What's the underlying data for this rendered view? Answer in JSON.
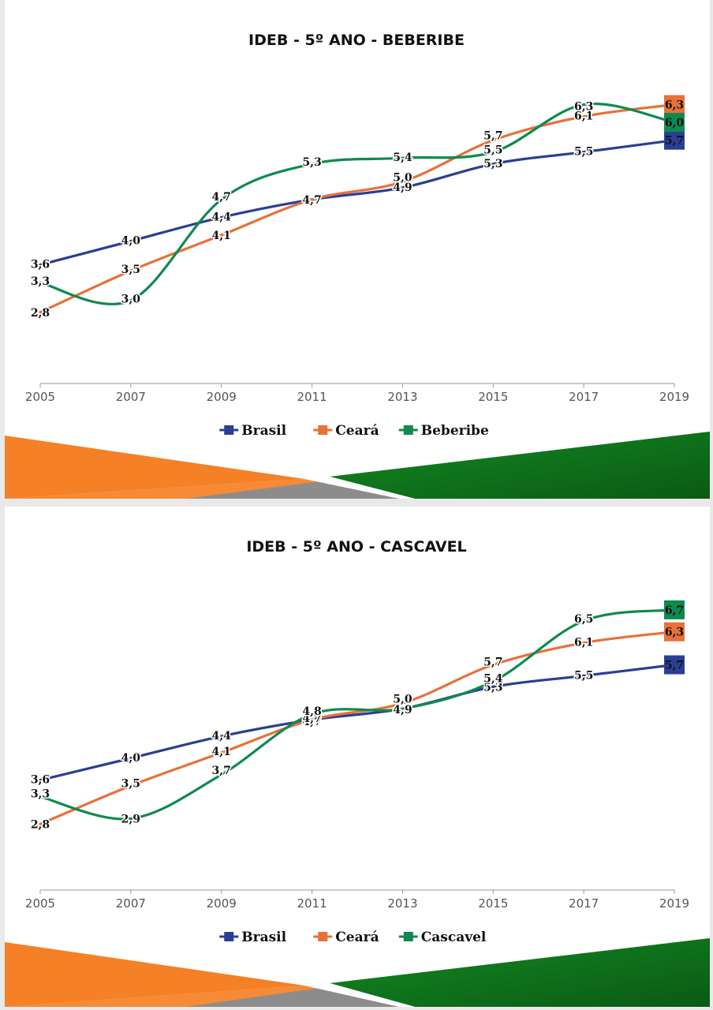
{
  "colors": {
    "brasil": "#2a3f93",
    "ceara": "#e7713a",
    "municipio": "#0f8a4f",
    "axis": "#999999",
    "banner_orange": "#f58025",
    "banner_green": "#138a22",
    "banner_gray": "#8c8c8c"
  },
  "chart_data": [
    {
      "type": "line",
      "title": "IDEB -  5º ANO - BEBERIBE",
      "x": [
        "2005",
        "2007",
        "2009",
        "2011",
        "2013",
        "2015",
        "2017",
        "2019"
      ],
      "ylim": [
        1.6,
        6.6
      ],
      "series": [
        {
          "name": "Brasil",
          "color_key": "brasil",
          "values": [
            3.6,
            4.0,
            4.4,
            4.7,
            4.9,
            5.3,
            5.5,
            5.7
          ],
          "labels": [
            "3,6",
            "4,0",
            "4,4",
            "4,7",
            "4,9",
            "5,3",
            "5,5",
            "5,7"
          ]
        },
        {
          "name": "Ceará",
          "color_key": "ceara",
          "values": [
            2.8,
            3.5,
            4.1,
            4.7,
            5.0,
            5.7,
            6.1,
            6.3
          ],
          "labels": [
            "2,8",
            "3,5",
            "4,1",
            "4,7",
            "5,0",
            "5,7",
            "6,1",
            "6,3"
          ]
        },
        {
          "name": "Beberibe",
          "color_key": "municipio",
          "values": [
            3.3,
            3.0,
            4.7,
            5.3,
            5.4,
            5.5,
            6.3,
            6.0
          ],
          "labels": [
            "3,3",
            "3,0",
            "4,7",
            "5,3",
            "5,4",
            "5,5",
            "6,3",
            "6,0"
          ]
        }
      ],
      "legend": [
        "Brasil",
        "Ceará",
        "Beberibe"
      ],
      "legend_position": "bottom"
    },
    {
      "type": "line",
      "title": "IDEB - 5º ANO - CASCAVEL",
      "x": [
        "2005",
        "2007",
        "2009",
        "2011",
        "2013",
        "2015",
        "2017",
        "2019"
      ],
      "ylim": [
        1.6,
        7.0
      ],
      "series": [
        {
          "name": "Brasil",
          "color_key": "brasil",
          "values": [
            3.6,
            4.0,
            4.4,
            4.7,
            4.9,
            5.3,
            5.5,
            5.7
          ],
          "labels": [
            "3,6",
            "4,0",
            "4,4",
            "4,7",
            "4,9",
            "5,3",
            "5,5",
            "5,7"
          ]
        },
        {
          "name": "Ceará",
          "color_key": "ceara",
          "values": [
            2.8,
            3.5,
            4.1,
            4.7,
            5.0,
            5.7,
            6.1,
            6.3
          ],
          "labels": [
            "2,8",
            "3,5",
            "4,1",
            "4,7",
            "5,0",
            "5,7",
            "6,1",
            "6,3"
          ]
        },
        {
          "name": "Cascavel",
          "color_key": "municipio",
          "values": [
            3.3,
            2.9,
            3.7,
            4.8,
            4.9,
            5.4,
            6.5,
            6.7
          ],
          "labels": [
            "3,3",
            "2,9",
            "3,7",
            "4,8",
            "4,9",
            "5,4",
            "6,5",
            "6,7"
          ]
        }
      ],
      "legend": [
        "Brasil",
        "Ceará",
        "Cascavel"
      ],
      "legend_position": "bottom"
    }
  ]
}
